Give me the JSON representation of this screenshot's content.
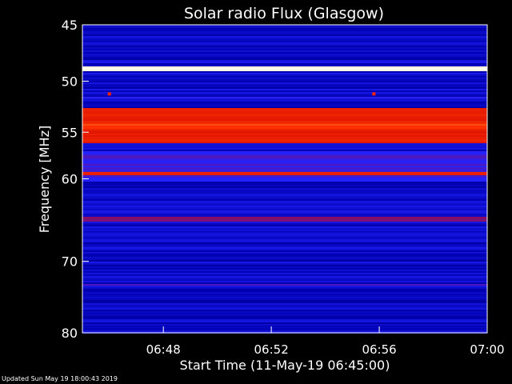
{
  "chart_data": {
    "type": "heatmap",
    "title": "Solar radio Flux (Glasgow)",
    "xlabel": "Start Time (11-May-19 06:45:00)",
    "ylabel": "Frequency [MHz]",
    "x_range_minutes": [
      0,
      15
    ],
    "x_ticks": [
      {
        "minute": 3,
        "label": "06:48"
      },
      {
        "minute": 7,
        "label": "06:52"
      },
      {
        "minute": 11,
        "label": "06:56"
      },
      {
        "minute": 15,
        "label": "07:00"
      }
    ],
    "y_range_mhz": [
      45,
      80
    ],
    "y_scale": "log",
    "y_ticks": [
      {
        "mhz": 45,
        "label": "45"
      },
      {
        "mhz": 50,
        "label": "50"
      },
      {
        "mhz": 55,
        "label": "55"
      },
      {
        "mhz": 60,
        "label": "60"
      },
      {
        "mhz": 70,
        "label": "70"
      },
      {
        "mhz": 80,
        "label": "80"
      }
    ],
    "colormap": [
      "#000000",
      "#0000b0",
      "#2222ff",
      "#cc0000",
      "#ff3300",
      "#ffcc66",
      "#ffffff"
    ],
    "background_intensity": 0.22,
    "bands": [
      {
        "mhz_low": 48.6,
        "mhz_high": 49.1,
        "intensity": 0.98
      },
      {
        "mhz_low": 51.5,
        "mhz_high": 51.7,
        "intensity": 0.35
      },
      {
        "mhz_low": 52.5,
        "mhz_high": 56.2,
        "intensity": 0.6
      },
      {
        "mhz_low": 54.1,
        "mhz_high": 54.6,
        "intensity": 0.68
      },
      {
        "mhz_low": 55.7,
        "mhz_high": 56.1,
        "intensity": 0.5
      },
      {
        "mhz_low": 57.0,
        "mhz_high": 60.3,
        "intensity": 0.36
      },
      {
        "mhz_low": 59.2,
        "mhz_high": 59.6,
        "intensity": 0.6
      },
      {
        "mhz_low": 64.5,
        "mhz_high": 65.0,
        "intensity": 0.42
      },
      {
        "mhz_low": 73.0,
        "mhz_high": 73.3,
        "intensity": 0.38
      }
    ],
    "spikes": [
      {
        "minute": 1.0,
        "mhz": 51.2
      },
      {
        "minute": 10.8,
        "mhz": 51.2
      }
    ]
  },
  "footer": "Updated Sun May 19 18:00:43 2019"
}
